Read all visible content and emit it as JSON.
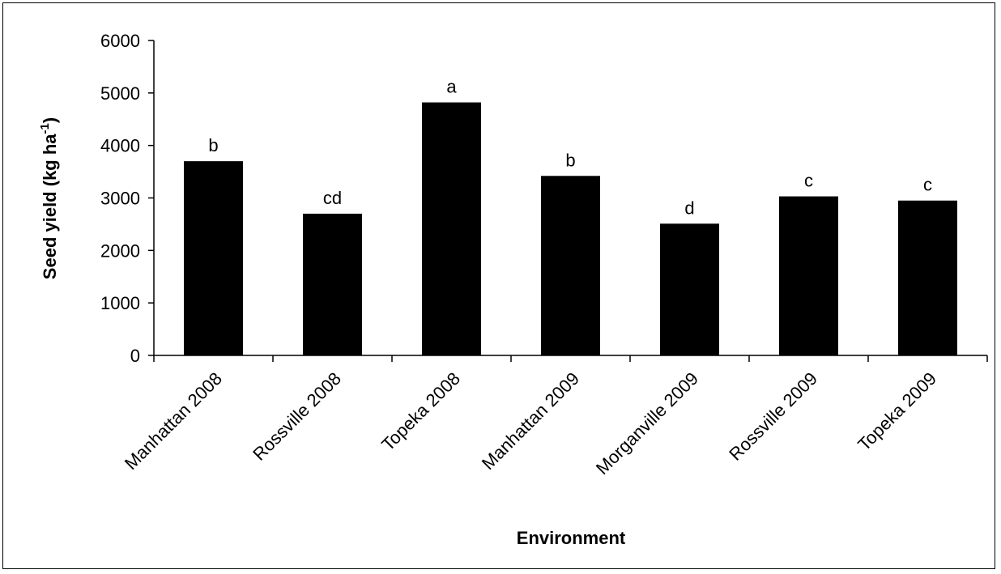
{
  "chart_data": {
    "type": "bar",
    "xlabel": "Environment",
    "ylabel": "Seed yield (kg ha",
    "ylabel_superscript": "-1",
    "ylabel_close": ")",
    "categories": [
      "Manhattan 2008",
      "Rossville 2008",
      "Topeka 2008",
      "Manhattan 2009",
      "Morganville 2009",
      "Rossville 2009",
      "Topeka 2009"
    ],
    "values": [
      3700,
      2700,
      4820,
      3420,
      2510,
      3030,
      2950
    ],
    "data_labels": [
      "b",
      "cd",
      "a",
      "b",
      "d",
      "c",
      "c"
    ],
    "ylim": [
      0,
      6000
    ],
    "yticks": [
      "0",
      "1000",
      "2000",
      "3000",
      "4000",
      "5000",
      "6000"
    ],
    "bar_color": "#000000",
    "grid": false,
    "legend": "none"
  }
}
